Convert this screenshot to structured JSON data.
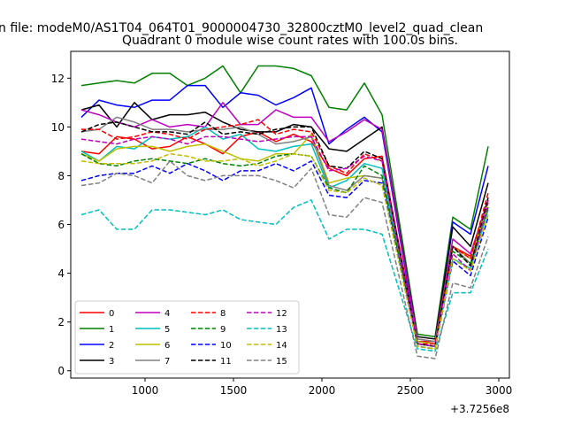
{
  "chart_data": {
    "type": "line",
    "suptitle": "n file: modeM0/AS1T04_064T01_9000004730_32800cztM0_level2_quad_clean",
    "title": "Quadrant 0 module wise count rates with 100.0s bins.",
    "xlabel": "",
    "ylabel": "",
    "x_offset_label": "+3.7256e8",
    "xlim": [
      580,
      3060
    ],
    "ylim": [
      -0.3,
      13.1
    ],
    "xticks": [
      1000,
      1500,
      2000,
      2500,
      3000
    ],
    "xtick_labels": [
      "1000",
      "1500",
      "2000",
      "2500",
      "3000"
    ],
    "yticks": [
      0,
      2,
      4,
      6,
      8,
      10,
      12
    ],
    "ytick_labels": [
      "0",
      "2",
      "4",
      "6",
      "8",
      "10",
      "12"
    ],
    "grid": false,
    "legend_position": "lower-left",
    "legend_columns": 4,
    "x": [
      640,
      740,
      840,
      940,
      1040,
      1140,
      1240,
      1340,
      1440,
      1540,
      1640,
      1740,
      1840,
      1940,
      2040,
      2140,
      2240,
      2340,
      2540,
      2640,
      2740,
      2840,
      2940
    ],
    "series": [
      {
        "name": "0",
        "color": "#ff0000",
        "dash": "solid",
        "values": [
          9.0,
          8.9,
          9.6,
          9.5,
          9.1,
          9.2,
          9.6,
          9.3,
          8.9,
          9.6,
          9.8,
          9.4,
          9.7,
          9.4,
          8.3,
          8.0,
          8.7,
          8.8,
          1.2,
          1.2,
          5.1,
          4.7,
          7.0
        ]
      },
      {
        "name": "1",
        "color": "#008000",
        "dash": "solid",
        "values": [
          11.7,
          11.8,
          11.9,
          11.8,
          12.2,
          12.2,
          11.7,
          12.0,
          12.5,
          11.4,
          12.5,
          12.5,
          12.4,
          12.1,
          10.8,
          10.7,
          11.8,
          10.5,
          1.5,
          1.4,
          6.3,
          5.8,
          9.2
        ]
      },
      {
        "name": "2",
        "color": "#0000ff",
        "dash": "solid",
        "values": [
          10.4,
          11.1,
          10.9,
          10.8,
          11.1,
          11.1,
          11.7,
          11.7,
          10.8,
          11.4,
          11.3,
          10.9,
          11.2,
          11.6,
          9.3,
          9.9,
          10.4,
          9.8,
          1.2,
          1.1,
          6.1,
          5.6,
          8.4
        ]
      },
      {
        "name": "3",
        "color": "#000000",
        "dash": "solid",
        "values": [
          10.7,
          10.9,
          10.0,
          11.0,
          10.3,
          10.5,
          10.5,
          10.6,
          10.2,
          9.9,
          9.8,
          9.8,
          10.1,
          10.0,
          9.1,
          9.0,
          9.5,
          10.0,
          1.4,
          1.3,
          5.9,
          5.1,
          7.7
        ]
      },
      {
        "name": "4",
        "color": "#bf00bf",
        "dash": "solid",
        "values": [
          10.7,
          10.5,
          10.2,
          10.0,
          10.3,
          10.0,
          10.1,
          10.0,
          11.0,
          10.1,
          10.1,
          10.7,
          10.4,
          10.4,
          9.4,
          9.8,
          10.3,
          9.9,
          1.3,
          1.2,
          5.4,
          4.8,
          7.0
        ]
      },
      {
        "name": "5",
        "color": "#00bfbf",
        "dash": "solid",
        "values": [
          9.0,
          8.6,
          9.2,
          9.1,
          9.6,
          9.5,
          9.6,
          10.0,
          9.5,
          9.7,
          9.1,
          9.0,
          9.2,
          9.3,
          7.5,
          7.8,
          8.5,
          8.3,
          1.1,
          1.0,
          4.6,
          4.2,
          6.6
        ]
      },
      {
        "name": "6",
        "color": "#bfbf00",
        "dash": "solid",
        "values": [
          8.9,
          8.6,
          9.1,
          9.2,
          9.2,
          9.0,
          9.2,
          9.3,
          9.0,
          8.7,
          8.6,
          8.9,
          8.9,
          9.7,
          7.7,
          7.9,
          8.0,
          7.9,
          1.2,
          1.1,
          5.1,
          4.6,
          6.9
        ]
      },
      {
        "name": "7",
        "color": "#808080",
        "dash": "solid",
        "values": [
          9.8,
          9.9,
          10.4,
          10.2,
          9.9,
          9.9,
          9.8,
          9.9,
          9.9,
          10.0,
          9.7,
          9.3,
          9.4,
          9.6,
          7.6,
          7.4,
          8.0,
          7.9,
          1.3,
          1.2,
          5.1,
          4.4,
          6.7
        ]
      },
      {
        "name": "8",
        "color": "#ff0000",
        "dash": "dashed",
        "values": [
          9.9,
          9.9,
          9.5,
          9.6,
          9.8,
          9.7,
          9.5,
          9.9,
          10.0,
          10.1,
          10.3,
          9.7,
          9.9,
          9.8,
          8.4,
          8.1,
          8.9,
          8.6,
          1.1,
          1.1,
          5.1,
          4.6,
          7.3
        ]
      },
      {
        "name": "9",
        "color": "#008000",
        "dash": "dashed",
        "values": [
          8.9,
          8.5,
          8.4,
          8.6,
          8.7,
          8.6,
          8.5,
          8.7,
          8.5,
          8.4,
          8.5,
          8.8,
          8.9,
          8.8,
          7.5,
          7.3,
          8.4,
          8.0,
          1.1,
          1.0,
          4.9,
          4.4,
          6.7
        ]
      },
      {
        "name": "10",
        "color": "#0000ff",
        "dash": "dashed",
        "values": [
          7.8,
          8.0,
          8.1,
          8.1,
          8.4,
          8.1,
          8.5,
          8.2,
          7.8,
          8.2,
          8.2,
          8.5,
          8.2,
          8.6,
          7.2,
          7.1,
          7.8,
          7.7,
          1.0,
          0.9,
          4.5,
          3.9,
          6.3
        ]
      },
      {
        "name": "11",
        "color": "#000000",
        "dash": "dashed",
        "values": [
          9.8,
          10.1,
          10.2,
          10.0,
          9.8,
          9.8,
          9.7,
          10.2,
          9.7,
          9.8,
          9.7,
          9.9,
          10.0,
          10.0,
          8.4,
          8.3,
          9.0,
          8.7,
          1.1,
          1.0,
          5.1,
          4.3,
          7.1
        ]
      },
      {
        "name": "12",
        "color": "#bf00bf",
        "dash": "dashed",
        "values": [
          9.5,
          9.4,
          9.3,
          9.5,
          9.6,
          9.5,
          9.3,
          9.6,
          9.6,
          9.5,
          9.4,
          9.5,
          9.6,
          9.6,
          8.2,
          8.3,
          8.8,
          8.6,
          1.1,
          1.0,
          4.8,
          4.1,
          6.9
        ]
      },
      {
        "name": "13",
        "color": "#00bfbf",
        "dash": "dashed",
        "values": [
          6.4,
          6.6,
          5.8,
          5.8,
          6.6,
          6.6,
          6.5,
          6.4,
          6.6,
          6.2,
          6.1,
          6.0,
          6.7,
          7.0,
          5.4,
          5.8,
          5.8,
          5.6,
          0.9,
          0.8,
          3.2,
          3.2,
          5.0
        ]
      },
      {
        "name": "14",
        "color": "#bfbf00",
        "dash": "dashed",
        "values": [
          8.6,
          8.5,
          8.5,
          8.5,
          8.6,
          8.9,
          8.8,
          8.6,
          8.6,
          8.7,
          8.4,
          8.6,
          8.9,
          8.8,
          7.4,
          7.3,
          7.9,
          7.6,
          1.0,
          0.9,
          4.6,
          4.1,
          6.4
        ]
      },
      {
        "name": "15",
        "color": "#808080",
        "dash": "dashed",
        "values": [
          7.6,
          7.7,
          8.1,
          8.0,
          7.7,
          8.6,
          8.0,
          7.8,
          8.0,
          8.0,
          8.0,
          7.8,
          7.5,
          8.3,
          6.4,
          6.3,
          7.1,
          6.9,
          0.6,
          0.5,
          3.6,
          3.4,
          5.5
        ]
      }
    ]
  }
}
